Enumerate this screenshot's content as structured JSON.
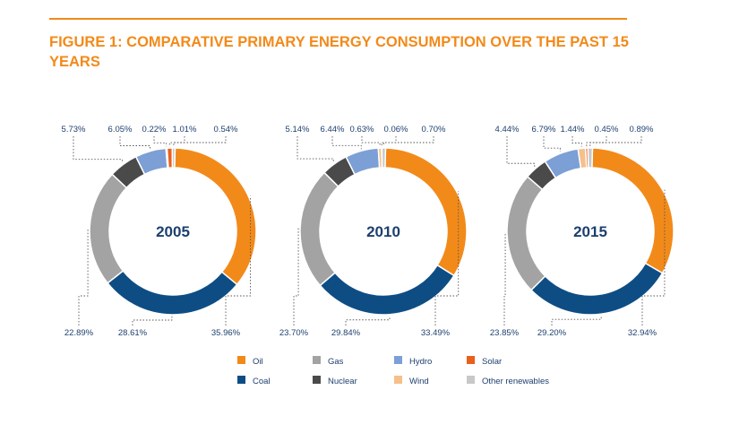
{
  "title": "FIGURE 1: COMPARATIVE PRIMARY ENERGY CONSUMPTION OVER THE PAST 15 YEARS",
  "colors": {
    "title": "#f28a1a",
    "text": "#1d3f6e",
    "Oil": "#f28a1a",
    "Coal": "#0e4d84",
    "Gas": "#a3a3a3",
    "Nuclear": "#4a4a4a",
    "Hydro": "#7c9fd6",
    "Wind": "#f5c08a",
    "Solar": "#e8601c",
    "Other renewables": "#c8c8c8"
  },
  "chart_data": {
    "type": "pie",
    "variant": "donut",
    "categories": [
      "Oil",
      "Coal",
      "Gas",
      "Nuclear",
      "Hydro",
      "Wind",
      "Solar",
      "Other renewables"
    ],
    "legend": {
      "placement": "bottom",
      "rows": [
        [
          "Oil",
          "Gas",
          "Hydro",
          "Solar"
        ],
        [
          "Coal",
          "Nuclear",
          "Wind",
          "Other renewables"
        ]
      ]
    },
    "charts": [
      {
        "label": "2005",
        "values": {
          "Oil": 35.96,
          "Coal": 28.61,
          "Gas": 22.89,
          "Nuclear": 5.73,
          "Hydro": 6.05,
          "Wind": 0.22,
          "Solar": 1.01,
          "Other renewables": 0.54
        },
        "labels": {
          "Oil": "35.96%",
          "Coal": "28.61%",
          "Gas": "22.89%",
          "Nuclear": "5.73%",
          "Hydro": "6.05%",
          "Wind": "0.22%",
          "Solar": "1.01%",
          "Other renewables": "0.54%"
        }
      },
      {
        "label": "2010",
        "values": {
          "Oil": 33.49,
          "Coal": 29.84,
          "Gas": 23.7,
          "Nuclear": 5.14,
          "Hydro": 6.44,
          "Wind": 0.63,
          "Solar": 0.06,
          "Other renewables": 0.7
        },
        "labels": {
          "Oil": "33.49%",
          "Coal": "29.84%",
          "Gas": "23.70%",
          "Nuclear": "5.14%",
          "Hydro": "6.44%",
          "Wind": "0.63%",
          "Solar": "0.06%",
          "Other renewables": "0.70%"
        }
      },
      {
        "label": "2015",
        "values": {
          "Oil": 32.94,
          "Coal": 29.2,
          "Gas": 23.85,
          "Nuclear": 4.44,
          "Hydro": 6.79,
          "Wind": 1.44,
          "Solar": 0.45,
          "Other renewables": 0.89
        },
        "labels": {
          "Oil": "32.94%",
          "Coal": "29.20%",
          "Gas": "23.85%",
          "Nuclear": "4.44%",
          "Hydro": "6.79%",
          "Wind": "1.44%",
          "Solar": "0.45%",
          "Other renewables": "0.89%"
        }
      }
    ]
  }
}
